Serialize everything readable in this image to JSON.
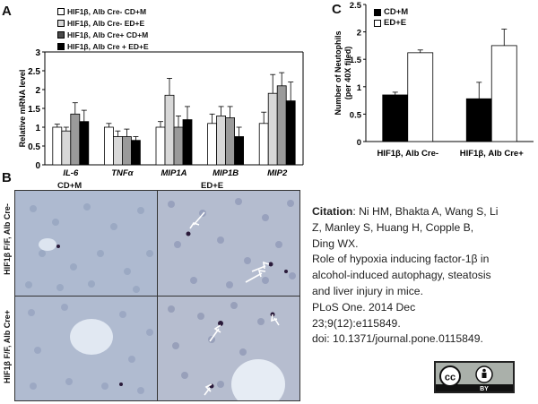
{
  "panels": {
    "A": "A",
    "B": "B",
    "C": "C"
  },
  "legendA": [
    {
      "label": "HIF1β, Alb Cre- CD+M",
      "swatch": "white"
    },
    {
      "label": "HIF1β, Alb Cre- ED+E",
      "swatch": "light"
    },
    {
      "label": "HIF1β, Alb Cre+ CD+M",
      "swatch": "dark"
    },
    {
      "label": "HIF1β, Alb Cre + ED+E",
      "swatch": "black"
    }
  ],
  "legendC": [
    {
      "label": "CD+M",
      "swatch": "black"
    },
    {
      "label": "ED+E",
      "swatch": "white"
    }
  ],
  "group_labels_A": {
    "left": "CD+M",
    "right": "ED+E"
  },
  "row_labels_B": [
    "HIF1β F/F, Alb Cre-",
    "HIF1β F/F, Alb Cre+"
  ],
  "chart_data": [
    {
      "type": "bar",
      "panel": "A",
      "ylabel": "Relative mRNA level",
      "ylim": [
        0,
        3
      ],
      "yticks": [
        "0",
        "0.5",
        "1",
        "1.5",
        "2",
        "2.5",
        "3"
      ],
      "categories": [
        "IL-6",
        "TNFα",
        "MIP1A",
        "MIP1B",
        "MIP2"
      ],
      "colors": [
        "#ffffff",
        "#d8d8d8",
        "#9a9a9a",
        "#000000"
      ],
      "series": [
        {
          "name": "HIF1β, Alb Cre- CD+M",
          "values": [
            1.0,
            1.0,
            1.0,
            1.1,
            1.1
          ],
          "errors": [
            0.08,
            0.1,
            0.15,
            0.25,
            0.3
          ]
        },
        {
          "name": "HIF1β, Alb Cre- ED+E",
          "values": [
            0.9,
            0.75,
            1.85,
            1.3,
            1.9
          ],
          "errors": [
            0.1,
            0.15,
            0.45,
            0.25,
            0.5
          ]
        },
        {
          "name": "HIF1β, Alb Cre+ CD+M",
          "values": [
            1.35,
            0.75,
            1.0,
            1.25,
            2.1
          ],
          "errors": [
            0.3,
            0.2,
            0.3,
            0.3,
            0.35
          ]
        },
        {
          "name": "HIF1β, Alb Cre + ED+E",
          "values": [
            1.15,
            0.65,
            1.2,
            0.75,
            1.7
          ],
          "errors": [
            0.3,
            0.1,
            0.35,
            0.25,
            0.5
          ]
        }
      ]
    },
    {
      "type": "bar",
      "panel": "C",
      "ylabel": "Number of Neutophils\n(per 40X filed)",
      "ylim": [
        0,
        2.5
      ],
      "yticks": [
        "0",
        "0.5",
        "1",
        "1.5",
        "2",
        "2.5"
      ],
      "categories": [
        "HIF1β, Alb Cre-",
        "HIF1β, Alb Cre+"
      ],
      "colors": [
        "#000000",
        "#ffffff"
      ],
      "series": [
        {
          "name": "CD+M",
          "values": [
            0.85,
            0.78
          ],
          "errors": [
            0.05,
            0.3
          ]
        },
        {
          "name": "ED+E",
          "values": [
            1.62,
            1.75
          ],
          "errors": [
            0.05,
            0.3
          ]
        }
      ]
    }
  ],
  "citation": {
    "label": "Citation",
    "lines": [
      ": Ni HM, Bhakta A, Wang S, Li",
      "Z, Manley S, Huang H, Copple B,",
      "Ding WX.",
      "Role of hypoxia inducing factor-1β in",
      "alcohol-induced autophagy, steatosis",
      "and liver injury in mice.",
      "PLoS One. 2014 Dec",
      "23;9(12):e115849.",
      "doi: 10.1371/journal.pone.0115849."
    ]
  },
  "license_badge": {
    "cc": "cc",
    "by": "BY"
  }
}
